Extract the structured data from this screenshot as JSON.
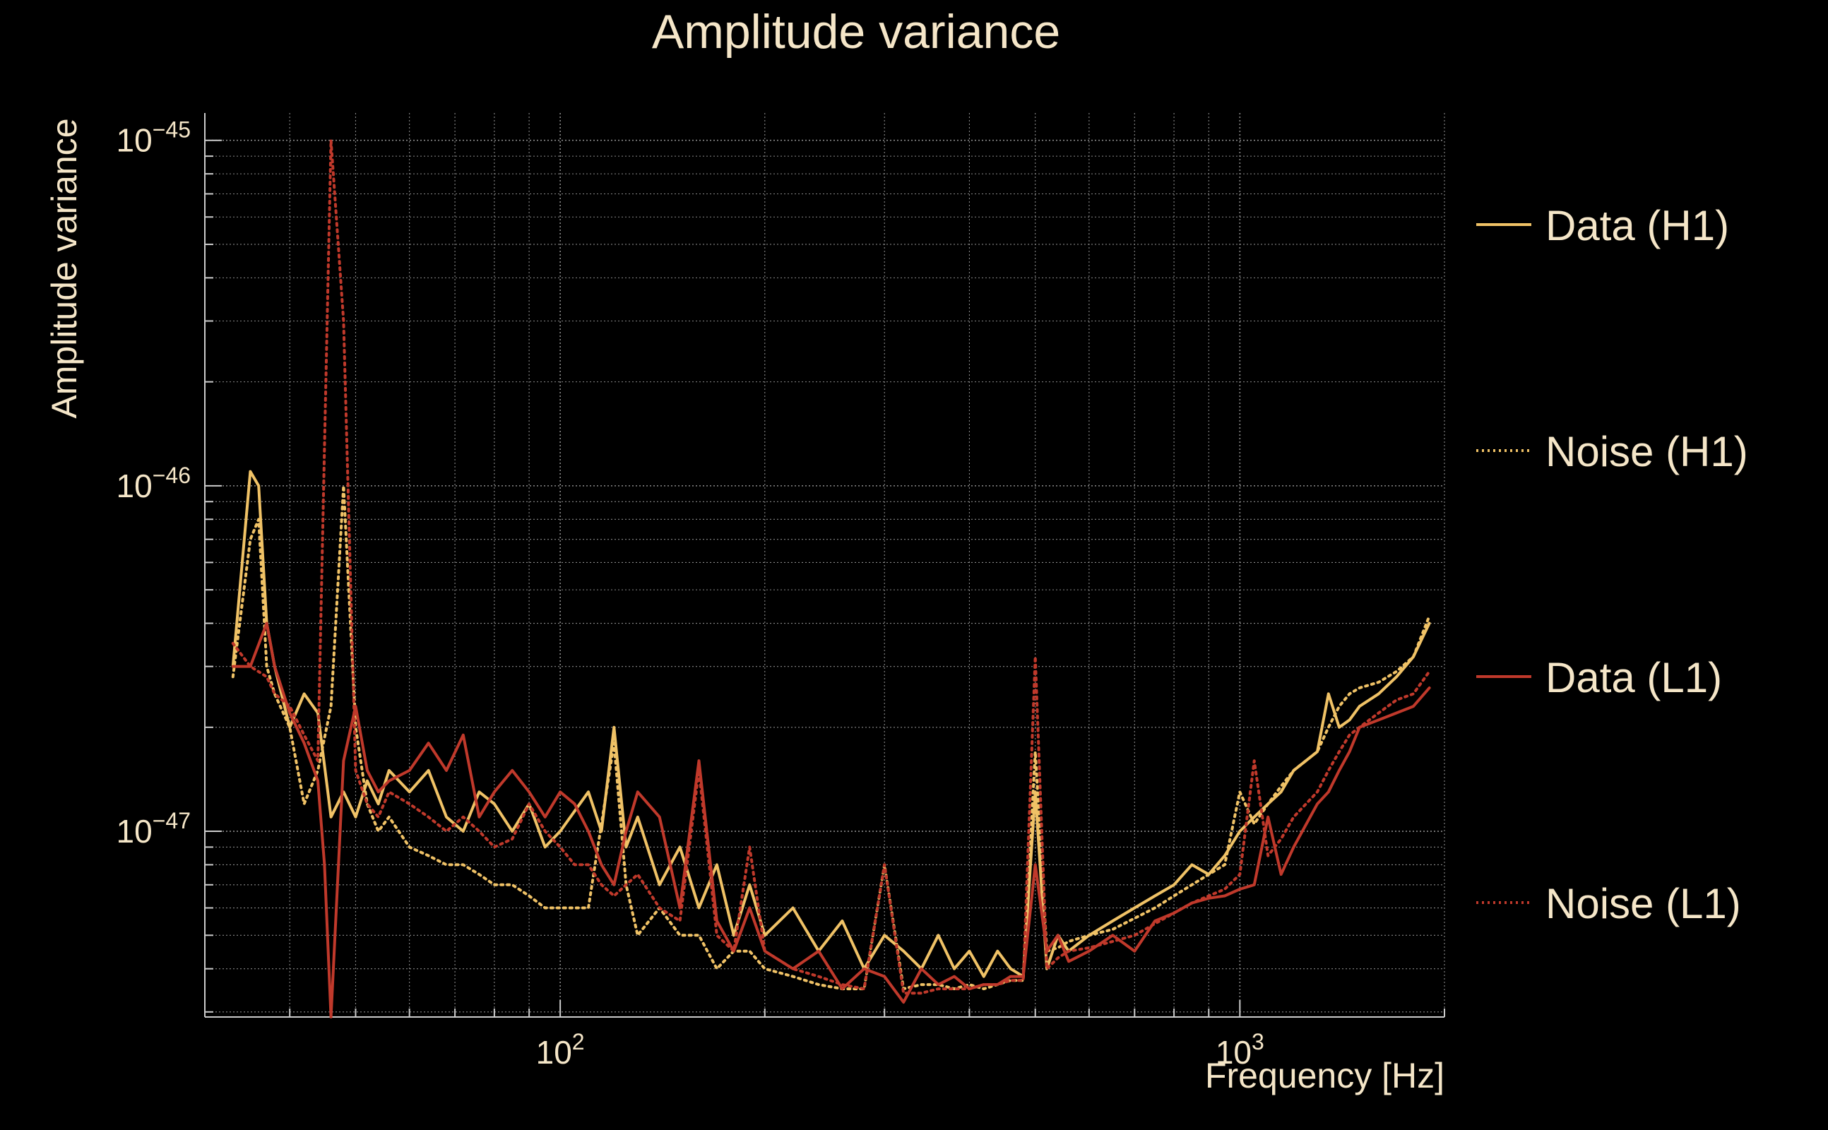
{
  "chart_data": {
    "type": "line",
    "title": "Amplitude variance",
    "xlabel": "Frequency [Hz]",
    "ylabel": "Amplitude variance",
    "x_scale": "log",
    "y_scale": "log",
    "xlim": [
      30,
      2000
    ],
    "ylim": [
      2.9e-48,
      1.2e-45
    ],
    "grid": true,
    "legend_position": "right",
    "x_ticks": [
      {
        "value": 100,
        "base": "10",
        "exp": "2"
      },
      {
        "value": 1000,
        "base": "10",
        "exp": "3"
      }
    ],
    "y_ticks": [
      {
        "value": 1e-45,
        "base": "10",
        "exp": "−45"
      },
      {
        "value": 1e-46,
        "base": "10",
        "exp": "−46"
      },
      {
        "value": 1e-47,
        "base": "10",
        "exp": "−47"
      }
    ],
    "colors": {
      "background": "#000000",
      "text": "#f5e6c8",
      "grid": "#8a8a8a",
      "h1": "#f0c266",
      "l1": "#c0392b"
    },
    "series": [
      {
        "name": "Data (H1)",
        "color": "#f0c266",
        "dash": "solid",
        "x": [
          33,
          35,
          36,
          37,
          38,
          40,
          42,
          44,
          46,
          48,
          50,
          52,
          54,
          56,
          60,
          64,
          68,
          72,
          76,
          80,
          85,
          90,
          95,
          100,
          110,
          115,
          120,
          125,
          130,
          140,
          150,
          160,
          170,
          180,
          190,
          200,
          220,
          240,
          260,
          280,
          300,
          320,
          340,
          360,
          380,
          400,
          420,
          440,
          460,
          480,
          500,
          520,
          540,
          560,
          600,
          650,
          700,
          750,
          800,
          850,
          900,
          950,
          1000,
          1050,
          1100,
          1150,
          1200,
          1300,
          1350,
          1400,
          1450,
          1500,
          1600,
          1700,
          1800,
          1900
        ],
        "y": [
          3e-47,
          1.1e-46,
          1e-46,
          4e-47,
          3e-47,
          2e-47,
          2.5e-47,
          2.2e-47,
          1.1e-47,
          1.3e-47,
          1.1e-47,
          1.4e-47,
          1.2e-47,
          1.5e-47,
          1.3e-47,
          1.5e-47,
          1.1e-47,
          1e-47,
          1.3e-47,
          1.2e-47,
          1e-47,
          1.2e-47,
          9e-48,
          1e-47,
          1.3e-47,
          1e-47,
          2e-47,
          9e-48,
          1.1e-47,
          7e-48,
          9e-48,
          6e-48,
          8e-48,
          5e-48,
          7e-48,
          5e-48,
          6e-48,
          4.5e-48,
          5.5e-48,
          4e-48,
          5e-48,
          4.5e-48,
          4e-48,
          5e-48,
          4e-48,
          4.5e-48,
          3.8e-48,
          4.5e-48,
          4e-48,
          3.8e-48,
          1.3e-47,
          4e-48,
          5e-48,
          4.5e-48,
          5e-48,
          5.5e-48,
          6e-48,
          6.5e-48,
          7e-48,
          8e-48,
          7.5e-48,
          8.5e-48,
          1e-47,
          1.1e-47,
          1.2e-47,
          1.3e-47,
          1.5e-47,
          1.7e-47,
          2.5e-47,
          2e-47,
          2.1e-47,
          2.3e-47,
          2.5e-47,
          2.8e-47,
          3.2e-47,
          4e-47
        ]
      },
      {
        "name": "Noise (H1)",
        "color": "#f0c266",
        "dash": "dotted",
        "x": [
          33,
          35,
          36,
          37,
          38,
          40,
          42,
          44,
          46,
          48,
          50,
          52,
          54,
          56,
          60,
          64,
          68,
          72,
          76,
          80,
          85,
          90,
          95,
          100,
          110,
          120,
          125,
          130,
          140,
          150,
          160,
          170,
          180,
          190,
          200,
          220,
          240,
          260,
          280,
          300,
          320,
          340,
          360,
          380,
          400,
          420,
          440,
          460,
          480,
          500,
          520,
          540,
          560,
          600,
          650,
          700,
          750,
          800,
          850,
          900,
          950,
          1000,
          1050,
          1100,
          1150,
          1200,
          1300,
          1350,
          1400,
          1450,
          1500,
          1600,
          1700,
          1800,
          1900
        ],
        "y": [
          2.8e-47,
          7e-47,
          8e-47,
          3e-47,
          2.5e-47,
          2e-47,
          1.2e-47,
          1.5e-47,
          2.3e-47,
          1e-46,
          2e-47,
          1.2e-47,
          1e-47,
          1.1e-47,
          9e-48,
          8.5e-48,
          8e-48,
          8e-48,
          7.5e-48,
          7e-48,
          7e-48,
          6.5e-48,
          6e-48,
          6e-48,
          6e-48,
          1.8e-47,
          7e-48,
          5e-48,
          6e-48,
          5e-48,
          5e-48,
          4e-48,
          4.5e-48,
          4.5e-48,
          4e-48,
          3.8e-48,
          3.6e-48,
          3.5e-48,
          3.5e-48,
          8e-48,
          3.5e-48,
          3.6e-48,
          3.6e-48,
          3.5e-48,
          3.6e-48,
          3.5e-48,
          3.6e-48,
          3.7e-48,
          3.7e-48,
          1.7e-47,
          4.5e-48,
          4.6e-48,
          4.8e-48,
          5e-48,
          5.2e-48,
          5.6e-48,
          6e-48,
          6.5e-48,
          7e-48,
          7.5e-48,
          8e-48,
          1.3e-47,
          1.05e-47,
          1.2e-47,
          1.35e-47,
          1.5e-47,
          1.7e-47,
          2e-47,
          2.3e-47,
          2.5e-47,
          2.6e-47,
          2.7e-47,
          2.9e-47,
          3.2e-47,
          4.2e-47
        ]
      },
      {
        "name": "Data (L1)",
        "color": "#c0392b",
        "dash": "solid",
        "x": [
          33,
          35,
          37,
          38,
          40,
          42,
          44,
          45,
          46,
          48,
          50,
          52,
          54,
          56,
          60,
          64,
          68,
          72,
          76,
          80,
          85,
          90,
          95,
          100,
          105,
          110,
          115,
          120,
          125,
          130,
          140,
          150,
          160,
          170,
          180,
          190,
          200,
          220,
          240,
          260,
          280,
          300,
          320,
          340,
          360,
          380,
          400,
          420,
          440,
          460,
          480,
          500,
          520,
          540,
          560,
          600,
          650,
          700,
          750,
          800,
          850,
          900,
          950,
          1000,
          1050,
          1100,
          1150,
          1200,
          1300,
          1350,
          1400,
          1450,
          1500,
          1600,
          1700,
          1800,
          1900
        ],
        "y": [
          3e-47,
          3e-47,
          4e-47,
          3e-47,
          2.2e-47,
          1.8e-47,
          1.4e-47,
          8e-48,
          2.9e-48,
          1.6e-47,
          2.3e-47,
          1.5e-47,
          1.3e-47,
          1.4e-47,
          1.5e-47,
          1.8e-47,
          1.5e-47,
          1.9e-47,
          1.1e-47,
          1.3e-47,
          1.5e-47,
          1.3e-47,
          1.1e-47,
          1.3e-47,
          1.2e-47,
          1e-47,
          8e-48,
          7e-48,
          1e-47,
          1.3e-47,
          1.1e-47,
          6e-48,
          1.6e-47,
          5.5e-48,
          4.5e-48,
          6e-48,
          4.5e-48,
          4e-48,
          4.5e-48,
          3.5e-48,
          4e-48,
          3.8e-48,
          3.2e-48,
          4e-48,
          3.6e-48,
          3.8e-48,
          3.5e-48,
          3.6e-48,
          3.6e-48,
          3.8e-48,
          3.8e-48,
          8e-48,
          4.5e-48,
          5e-48,
          4.2e-48,
          4.5e-48,
          5e-48,
          4.5e-48,
          5.5e-48,
          5.8e-48,
          6.2e-48,
          6.4e-48,
          6.5e-48,
          6.8e-48,
          7e-48,
          1.1e-47,
          7.5e-48,
          9e-48,
          1.2e-47,
          1.3e-47,
          1.5e-47,
          1.7e-47,
          2e-47,
          2.1e-47,
          2.2e-47,
          2.3e-47,
          2.6e-47
        ]
      },
      {
        "name": "Noise (L1)",
        "color": "#c0392b",
        "dash": "dotted",
        "x": [
          33,
          35,
          37,
          38,
          40,
          42,
          44,
          46,
          48,
          50,
          52,
          54,
          56,
          60,
          64,
          68,
          72,
          76,
          80,
          85,
          90,
          95,
          100,
          105,
          110,
          115,
          120,
          125,
          130,
          140,
          150,
          160,
          170,
          180,
          190,
          200,
          220,
          240,
          260,
          280,
          300,
          320,
          340,
          360,
          380,
          400,
          420,
          440,
          460,
          480,
          500,
          520,
          540,
          560,
          600,
          650,
          700,
          750,
          800,
          850,
          900,
          950,
          1000,
          1050,
          1100,
          1150,
          1200,
          1300,
          1350,
          1400,
          1450,
          1500,
          1600,
          1700,
          1800,
          1900
        ],
        "y": [
          3.5e-47,
          3e-47,
          2.8e-47,
          2.5e-47,
          2.3e-47,
          1.9e-47,
          1.6e-47,
          1e-45,
          3e-46,
          1.5e-47,
          1.2e-47,
          1.1e-47,
          1.3e-47,
          1.2e-47,
          1.1e-47,
          1e-47,
          1.1e-47,
          1e-47,
          9e-48,
          9.5e-48,
          1.2e-47,
          1e-47,
          9e-48,
          8e-48,
          8e-48,
          7e-48,
          6.5e-48,
          7e-48,
          7.5e-48,
          6e-48,
          5.5e-48,
          1.5e-47,
          5e-48,
          4.5e-48,
          9e-48,
          4.5e-48,
          4e-48,
          3.8e-48,
          3.6e-48,
          3.5e-48,
          8e-48,
          3.4e-48,
          3.4e-48,
          3.5e-48,
          3.5e-48,
          3.5e-48,
          3.6e-48,
          3.6e-48,
          3.7e-48,
          3.7e-48,
          3.2e-47,
          4e-48,
          4.3e-48,
          4.5e-48,
          4.6e-48,
          4.8e-48,
          5e-48,
          5.4e-48,
          5.8e-48,
          6.2e-48,
          6.5e-48,
          6.8e-48,
          7.5e-48,
          1.6e-47,
          8.5e-48,
          9.5e-48,
          1.1e-47,
          1.3e-47,
          1.5e-47,
          1.7e-47,
          1.9e-47,
          2e-47,
          2.2e-47,
          2.4e-47,
          2.5e-47,
          2.9e-47
        ]
      }
    ]
  }
}
